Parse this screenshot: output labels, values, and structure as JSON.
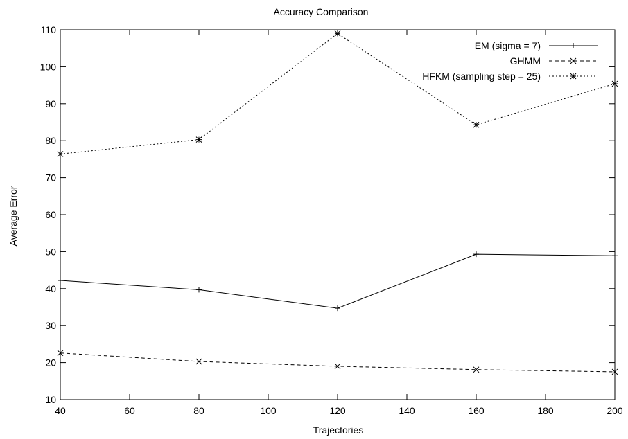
{
  "chart_data": {
    "type": "line",
    "title": "Accuracy Comparison",
    "xlabel": "Trajectories",
    "ylabel": "Average Error",
    "x": [
      40,
      80,
      120,
      160,
      200
    ],
    "xlim": [
      40,
      200
    ],
    "ylim": [
      10,
      110
    ],
    "xticks": [
      40,
      60,
      80,
      100,
      120,
      140,
      160,
      180,
      200
    ],
    "yticks": [
      10,
      20,
      30,
      40,
      50,
      60,
      70,
      80,
      90,
      100,
      110
    ],
    "grid": false,
    "legend_position": "top-right",
    "series": [
      {
        "name": "EM (sigma = 7)",
        "values": [
          42.2,
          39.7,
          34.7,
          49.3,
          48.9
        ],
        "marker": "plus",
        "dash": "solid",
        "color": "#000000"
      },
      {
        "name": "GHMM",
        "values": [
          22.6,
          20.3,
          19.0,
          18.1,
          17.5
        ],
        "marker": "cross",
        "dash": "dashed",
        "color": "#000000"
      },
      {
        "name": "HFKM (sampling step = 25)",
        "values": [
          76.4,
          80.3,
          109.0,
          84.3,
          95.4
        ],
        "marker": "star",
        "dash": "dotted",
        "color": "#000000"
      }
    ]
  }
}
